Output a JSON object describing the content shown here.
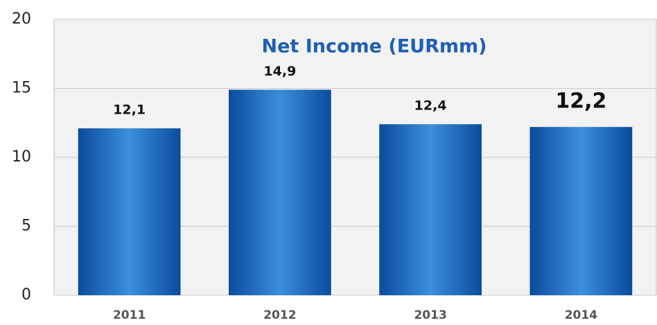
{
  "chart_data": {
    "type": "bar",
    "title": "Net Income (EURmm)",
    "categories": [
      "2011",
      "2012",
      "2013",
      "2014"
    ],
    "values": [
      12.1,
      14.9,
      12.4,
      12.2
    ],
    "value_labels": [
      "12,1",
      "14,9",
      "12,4",
      "12,2"
    ],
    "color": "#1f6fc4",
    "ylim": [
      0,
      20
    ],
    "yticks": [
      0,
      5,
      10,
      15,
      20
    ],
    "grid": true
  }
}
